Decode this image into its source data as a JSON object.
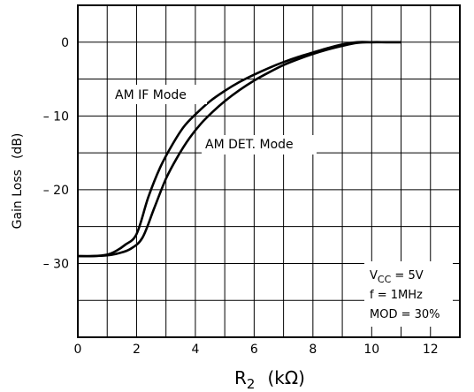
{
  "chart_data": {
    "type": "line",
    "title": "",
    "xlabel_main": "R",
    "xlabel_sub": "2",
    "xlabel_unit": "(kΩ)",
    "ylabel": "Gain Loss",
    "ylabel_unit": "(dB)",
    "xlim": [
      0,
      13
    ],
    "ylim": [
      -40,
      5
    ],
    "grid": true,
    "x_ticks": [
      0,
      2,
      4,
      6,
      8,
      10,
      12
    ],
    "x_tick_labels": [
      "0",
      "2",
      "4",
      "6",
      "8",
      "10",
      "12"
    ],
    "y_ticks": [
      0,
      -10,
      -20,
      -30
    ],
    "y_tick_labels": [
      "0",
      "– 10",
      "– 20",
      "– 30"
    ],
    "series": [
      {
        "name": "AM IF Mode",
        "x": [
          0,
          0.5,
          1.0,
          1.3,
          1.6,
          2.0,
          2.4,
          2.8,
          3.2,
          3.6,
          4.0,
          4.5,
          5.0,
          5.5,
          6.0,
          6.5,
          7.0,
          7.5,
          8.0,
          8.5,
          9.0,
          9.5,
          10.0,
          10.5,
          11.0
        ],
        "y": [
          -29,
          -29,
          -28.8,
          -28.3,
          -27.5,
          -26.0,
          -21.0,
          -17.0,
          -14.0,
          -11.5,
          -9.8,
          -8.0,
          -6.6,
          -5.4,
          -4.4,
          -3.5,
          -2.7,
          -2.0,
          -1.4,
          -0.8,
          -0.3,
          0,
          0,
          0,
          0
        ]
      },
      {
        "name": "AM DET. Mode",
        "x": [
          0,
          0.5,
          1.0,
          1.4,
          1.8,
          2.2,
          2.6,
          3.0,
          3.4,
          3.8,
          4.2,
          4.6,
          5.0,
          5.5,
          6.0,
          6.5,
          7.0,
          7.5,
          8.0,
          8.5,
          9.0,
          9.5,
          10.0,
          10.5,
          11.0
        ],
        "y": [
          -29,
          -29,
          -28.9,
          -28.6,
          -28.0,
          -26.5,
          -22.5,
          -18.5,
          -15.5,
          -13.0,
          -11.0,
          -9.4,
          -8.0,
          -6.5,
          -5.2,
          -4.1,
          -3.1,
          -2.3,
          -1.6,
          -1.0,
          -0.5,
          -0.1,
          0,
          0,
          0
        ]
      }
    ],
    "annotations": {
      "if_label": "AM IF Mode",
      "det_label": "AM DET. Mode",
      "vcc_main": "V",
      "vcc_sub": "CC",
      "vcc_value": " = 5V",
      "freq": "f = 1MHz",
      "mod": "MOD = 30%"
    }
  }
}
